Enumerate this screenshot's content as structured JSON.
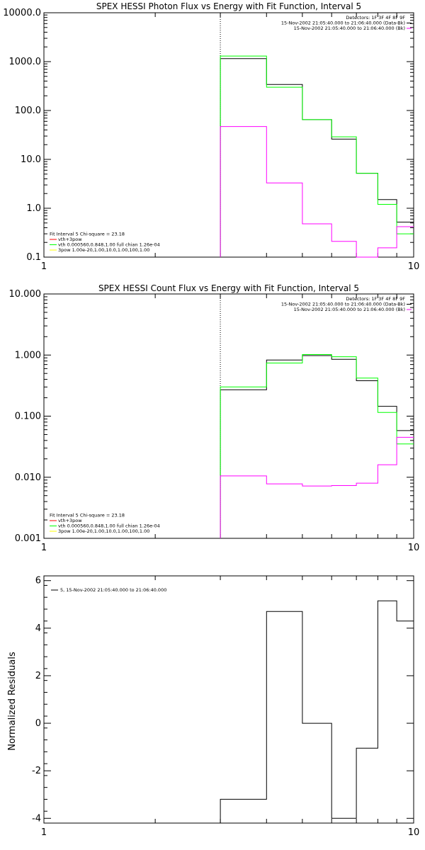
{
  "panels": [
    {
      "id": "photon",
      "title": "SPEX HESSI Photon Flux vs Energy with Fit Function, Interval 5",
      "xscale": "log",
      "yscale": "log",
      "xlim": [
        1,
        10
      ],
      "ylim": [
        0.1,
        10000.0
      ],
      "ytick_values": [
        0.1,
        1.0,
        10.0,
        100.0,
        1000.0,
        10000.0
      ],
      "ytick_labels": [
        "0.1",
        "1.0",
        "10.0",
        "100.0",
        "1000.0",
        "10000.0"
      ],
      "xtick_values": [
        1,
        10
      ],
      "xtick_labels": [
        "1",
        "10"
      ],
      "vline_x": 3,
      "legend_tr": [
        {
          "text": "Detectors: 1F 3F 4F 8F 9F",
          "color": ""
        },
        {
          "text": "15-Nov-2002 21:05:40.000 to 21:06:40.000 (Data-Bk)",
          "color": "#000000"
        },
        {
          "text": "15-Nov-2002 21:05:40.000 to 21:06:40.000 (Bk)",
          "color": "#ff00ff"
        }
      ],
      "legend_bl": [
        {
          "text": "Fit Interval  5    Chi-square = 23.18",
          "color": ""
        },
        {
          "text": "vth+3pow",
          "color": "#ff0000"
        },
        {
          "text": "vth 0.000560,0.848,1.00   full chian 1.26e-04",
          "color": "#00ff00"
        },
        {
          "text": "3pow 1.00e-20,1.00,10.0,1.00,100,1.00",
          "color": "#ffff00"
        }
      ]
    },
    {
      "id": "count",
      "title": "SPEX HESSI Count Flux vs Energy with Fit Function, Interval 5",
      "xscale": "log",
      "yscale": "log",
      "xlim": [
        1,
        10
      ],
      "ylim": [
        0.001,
        10.0
      ],
      "ytick_values": [
        0.001,
        0.01,
        0.1,
        1.0,
        10.0
      ],
      "ytick_labels": [
        "0.001",
        "0.010",
        "0.100",
        "1.000",
        "10.000"
      ],
      "xtick_values": [
        1,
        10
      ],
      "xtick_labels": [
        "1",
        "10"
      ],
      "vline_x": 3,
      "legend_tr": [
        {
          "text": "Detectors: 1F 3F 4F 8F 9F",
          "color": ""
        },
        {
          "text": "15-Nov-2002 21:05:40.000 to 21:06:40.000 (Data-Bk)",
          "color": "#000000"
        },
        {
          "text": "15-Nov-2002 21:05:40.000 to 21:06:40.000 (Bk)",
          "color": "#ff00ff"
        }
      ],
      "legend_bl": [
        {
          "text": "Fit Interval  5    Chi-square = 23.18",
          "color": ""
        },
        {
          "text": "vth+3pow",
          "color": "#ff0000"
        },
        {
          "text": "vth 0.000560,0.848,1.00   full chian 1.26e-04",
          "color": "#00ff00"
        },
        {
          "text": "3pow 1.00e-20,1.00,10.0,1.00,100,1.00",
          "color": "#ffff00"
        }
      ]
    },
    {
      "id": "resid",
      "title": "",
      "ylabel": "Normalized Residuals",
      "xscale": "log",
      "yscale": "linear",
      "xlim": [
        1,
        10
      ],
      "ylim": [
        -4.2,
        6.2
      ],
      "ytick_values": [
        -4,
        -2,
        0,
        2,
        4,
        6
      ],
      "ytick_labels": [
        "-4",
        "-2",
        "0",
        "2",
        "4",
        "6"
      ],
      "xtick_values": [
        1,
        10
      ],
      "xtick_labels": [
        "1",
        "10"
      ],
      "legend_tl": [
        {
          "text": "5, 15-Nov-2002 21:05:40.000 to 21:06:40.000",
          "color": "#000000"
        }
      ]
    }
  ],
  "chart_data": [
    {
      "type": "line",
      "title": "SPEX HESSI Photon Flux vs Energy with Fit Function, Interval 5",
      "xlabel": "",
      "ylabel": "",
      "xscale": "log",
      "yscale": "log",
      "xlim": [
        1,
        10
      ],
      "ylim": [
        0.1,
        10000.0
      ],
      "bin_edges": [
        3,
        4,
        5,
        6,
        7,
        8,
        9,
        10
      ],
      "series": [
        {
          "name": "15-Nov-2002 21:05:40.000 to 21:06:40.000 (Data-Bk)",
          "color": "#000000",
          "values": [
            1150,
            340,
            65,
            26,
            5.2,
            1.5,
            0.52
          ]
        },
        {
          "name": "vth 0.000560,0.848,1.00   full chian 1.26e-04",
          "color": "#00ff00",
          "values": [
            1300,
            300,
            65,
            29,
            5.2,
            1.2,
            0.3
          ]
        },
        {
          "name": "15-Nov-2002 21:05:40.000 to 21:06:40.000 (Bk)",
          "color": "#ff00ff",
          "values": [
            47,
            3.3,
            0.48,
            0.21,
            0.095,
            0.155,
            0.42
          ]
        }
      ]
    },
    {
      "type": "line",
      "title": "SPEX HESSI Count Flux vs Energy with Fit Function, Interval 5",
      "xlabel": "",
      "ylabel": "",
      "xscale": "log",
      "yscale": "log",
      "xlim": [
        1,
        10
      ],
      "ylim": [
        0.001,
        10.0
      ],
      "bin_edges": [
        3,
        4,
        5,
        6,
        7,
        8,
        9,
        10
      ],
      "series": [
        {
          "name": "15-Nov-2002 21:05:40.000 to 21:06:40.000 (Data-Bk)",
          "color": "#000000",
          "values": [
            0.27,
            0.83,
            0.98,
            0.85,
            0.38,
            0.145,
            0.058
          ]
        },
        {
          "name": "vth 0.000560,0.848,1.00   full chian 1.26e-04",
          "color": "#00ff00",
          "values": [
            0.3,
            0.74,
            1.02,
            0.94,
            0.42,
            0.115,
            0.035
          ]
        },
        {
          "name": "15-Nov-2002 21:05:40.000 to 21:06:40.000 (Bk)",
          "color": "#ff00ff",
          "values": [
            0.0105,
            0.0078,
            0.0072,
            0.0073,
            0.008,
            0.016,
            0.045
          ]
        }
      ]
    },
    {
      "type": "line",
      "title": "",
      "xlabel": "",
      "ylabel": "Normalized Residuals",
      "xscale": "log",
      "yscale": "linear",
      "xlim": [
        1,
        10
      ],
      "ylim": [
        -4.2,
        6.2
      ],
      "bin_edges": [
        3,
        4,
        5,
        6,
        7,
        8,
        9,
        10
      ],
      "series": [
        {
          "name": "5, 15-Nov-2002 21:05:40.000 to 21:06:40.000",
          "color": "#000000",
          "values": [
            -3.2,
            4.7,
            0.0,
            -4.0,
            -1.05,
            5.15,
            4.3
          ]
        }
      ]
    }
  ]
}
